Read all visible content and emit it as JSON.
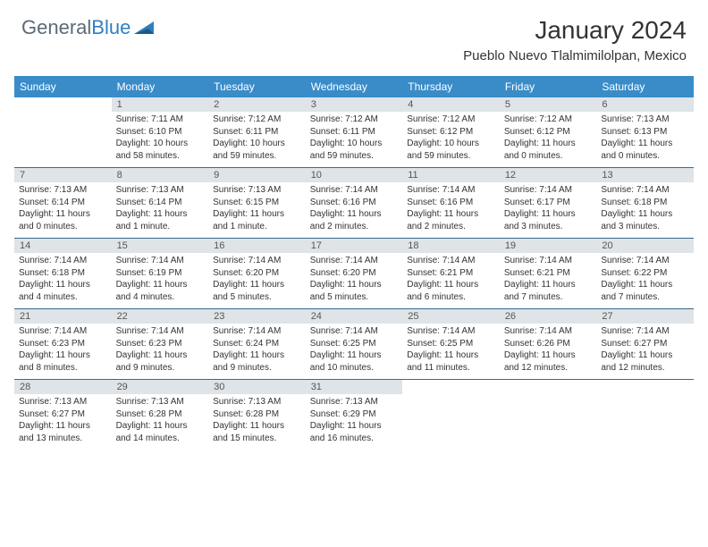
{
  "logo": {
    "text1": "General",
    "text2": "Blue"
  },
  "title": "January 2024",
  "location": "Pueblo Nuevo Tlalmimilolpan, Mexico",
  "colors": {
    "header_bg": "#3a8cc9",
    "header_text": "#ffffff",
    "daynum_bg": "#dfe4e8",
    "divider": "#3a6a8f",
    "logo_gray": "#5a6a78",
    "logo_blue": "#2f7fc2"
  },
  "dayHeaders": [
    "Sunday",
    "Monday",
    "Tuesday",
    "Wednesday",
    "Thursday",
    "Friday",
    "Saturday"
  ],
  "weeks": [
    {
      "nums": [
        "",
        "1",
        "2",
        "3",
        "4",
        "5",
        "6"
      ],
      "cells": [
        null,
        {
          "sunrise": "7:11 AM",
          "sunset": "6:10 PM",
          "daylight": "10 hours and 58 minutes."
        },
        {
          "sunrise": "7:12 AM",
          "sunset": "6:11 PM",
          "daylight": "10 hours and 59 minutes."
        },
        {
          "sunrise": "7:12 AM",
          "sunset": "6:11 PM",
          "daylight": "10 hours and 59 minutes."
        },
        {
          "sunrise": "7:12 AM",
          "sunset": "6:12 PM",
          "daylight": "10 hours and 59 minutes."
        },
        {
          "sunrise": "7:12 AM",
          "sunset": "6:12 PM",
          "daylight": "11 hours and 0 minutes."
        },
        {
          "sunrise": "7:13 AM",
          "sunset": "6:13 PM",
          "daylight": "11 hours and 0 minutes."
        }
      ]
    },
    {
      "nums": [
        "7",
        "8",
        "9",
        "10",
        "11",
        "12",
        "13"
      ],
      "cells": [
        {
          "sunrise": "7:13 AM",
          "sunset": "6:14 PM",
          "daylight": "11 hours and 0 minutes."
        },
        {
          "sunrise": "7:13 AM",
          "sunset": "6:14 PM",
          "daylight": "11 hours and 1 minute."
        },
        {
          "sunrise": "7:13 AM",
          "sunset": "6:15 PM",
          "daylight": "11 hours and 1 minute."
        },
        {
          "sunrise": "7:14 AM",
          "sunset": "6:16 PM",
          "daylight": "11 hours and 2 minutes."
        },
        {
          "sunrise": "7:14 AM",
          "sunset": "6:16 PM",
          "daylight": "11 hours and 2 minutes."
        },
        {
          "sunrise": "7:14 AM",
          "sunset": "6:17 PM",
          "daylight": "11 hours and 3 minutes."
        },
        {
          "sunrise": "7:14 AM",
          "sunset": "6:18 PM",
          "daylight": "11 hours and 3 minutes."
        }
      ]
    },
    {
      "nums": [
        "14",
        "15",
        "16",
        "17",
        "18",
        "19",
        "20"
      ],
      "cells": [
        {
          "sunrise": "7:14 AM",
          "sunset": "6:18 PM",
          "daylight": "11 hours and 4 minutes."
        },
        {
          "sunrise": "7:14 AM",
          "sunset": "6:19 PM",
          "daylight": "11 hours and 4 minutes."
        },
        {
          "sunrise": "7:14 AM",
          "sunset": "6:20 PM",
          "daylight": "11 hours and 5 minutes."
        },
        {
          "sunrise": "7:14 AM",
          "sunset": "6:20 PM",
          "daylight": "11 hours and 5 minutes."
        },
        {
          "sunrise": "7:14 AM",
          "sunset": "6:21 PM",
          "daylight": "11 hours and 6 minutes."
        },
        {
          "sunrise": "7:14 AM",
          "sunset": "6:21 PM",
          "daylight": "11 hours and 7 minutes."
        },
        {
          "sunrise": "7:14 AM",
          "sunset": "6:22 PM",
          "daylight": "11 hours and 7 minutes."
        }
      ]
    },
    {
      "nums": [
        "21",
        "22",
        "23",
        "24",
        "25",
        "26",
        "27"
      ],
      "cells": [
        {
          "sunrise": "7:14 AM",
          "sunset": "6:23 PM",
          "daylight": "11 hours and 8 minutes."
        },
        {
          "sunrise": "7:14 AM",
          "sunset": "6:23 PM",
          "daylight": "11 hours and 9 minutes."
        },
        {
          "sunrise": "7:14 AM",
          "sunset": "6:24 PM",
          "daylight": "11 hours and 9 minutes."
        },
        {
          "sunrise": "7:14 AM",
          "sunset": "6:25 PM",
          "daylight": "11 hours and 10 minutes."
        },
        {
          "sunrise": "7:14 AM",
          "sunset": "6:25 PM",
          "daylight": "11 hours and 11 minutes."
        },
        {
          "sunrise": "7:14 AM",
          "sunset": "6:26 PM",
          "daylight": "11 hours and 12 minutes."
        },
        {
          "sunrise": "7:14 AM",
          "sunset": "6:27 PM",
          "daylight": "11 hours and 12 minutes."
        }
      ]
    },
    {
      "nums": [
        "28",
        "29",
        "30",
        "31",
        "",
        "",
        ""
      ],
      "cells": [
        {
          "sunrise": "7:13 AM",
          "sunset": "6:27 PM",
          "daylight": "11 hours and 13 minutes."
        },
        {
          "sunrise": "7:13 AM",
          "sunset": "6:28 PM",
          "daylight": "11 hours and 14 minutes."
        },
        {
          "sunrise": "7:13 AM",
          "sunset": "6:28 PM",
          "daylight": "11 hours and 15 minutes."
        },
        {
          "sunrise": "7:13 AM",
          "sunset": "6:29 PM",
          "daylight": "11 hours and 16 minutes."
        },
        null,
        null,
        null
      ]
    }
  ],
  "labels": {
    "sunrise": "Sunrise:",
    "sunset": "Sunset:",
    "daylight": "Daylight:"
  }
}
